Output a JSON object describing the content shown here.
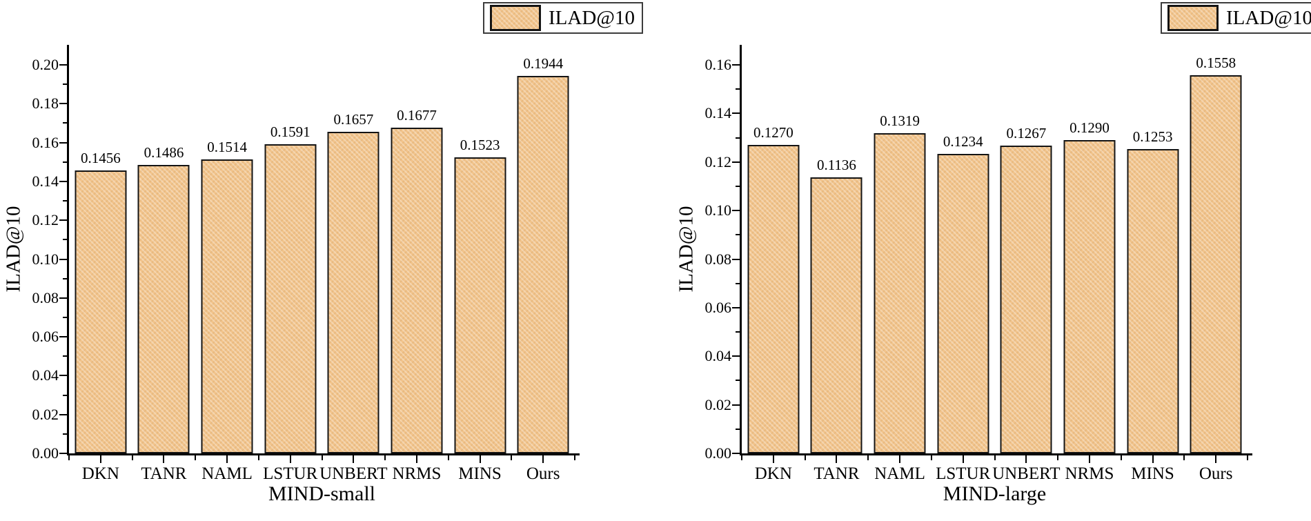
{
  "figure_background": "#ffffff",
  "colors": {
    "bar_fill": "#f2c48c",
    "bar_border": "#141414",
    "axis": "#000000",
    "text": "#000000",
    "legend_border": "#3c3c3c"
  },
  "chart_data": [
    {
      "type": "bar",
      "legend": "ILAD@10",
      "legend_position": "top-right",
      "xlabel": "MIND-small",
      "ylabel": "ILAD@10",
      "categories": [
        "DKN",
        "TANR",
        "NAML",
        "LSTUR",
        "UNBERT",
        "NRMS",
        "MINS",
        "Ours"
      ],
      "values": [
        0.1456,
        0.1486,
        0.1514,
        0.1591,
        0.1657,
        0.1677,
        0.1523,
        0.1944
      ],
      "value_labels": [
        "0.1456",
        "0.1486",
        "0.1514",
        "0.1591",
        "0.1657",
        "0.1677",
        "0.1523",
        "0.1944"
      ],
      "ylim": [
        0,
        0.2
      ],
      "ytick_step": 0.02,
      "yminor_step": 0.01,
      "grid": false
    },
    {
      "type": "bar",
      "legend": "ILAD@10",
      "legend_position": "top-right",
      "xlabel": "MIND-large",
      "ylabel": "ILAD@10",
      "categories": [
        "DKN",
        "TANR",
        "NAML",
        "LSTUR",
        "UNBERT",
        "NRMS",
        "MINS",
        "Ours"
      ],
      "values": [
        0.127,
        0.1136,
        0.1319,
        0.1234,
        0.1267,
        0.129,
        0.1253,
        0.1558
      ],
      "value_labels": [
        "0.1270",
        "0.1136",
        "0.1319",
        "0.1234",
        "0.1267",
        "0.1290",
        "0.1253",
        "0.1558"
      ],
      "ylim": [
        0,
        0.16
      ],
      "ytick_step": 0.02,
      "yminor_step": 0.01,
      "grid": false
    }
  ]
}
